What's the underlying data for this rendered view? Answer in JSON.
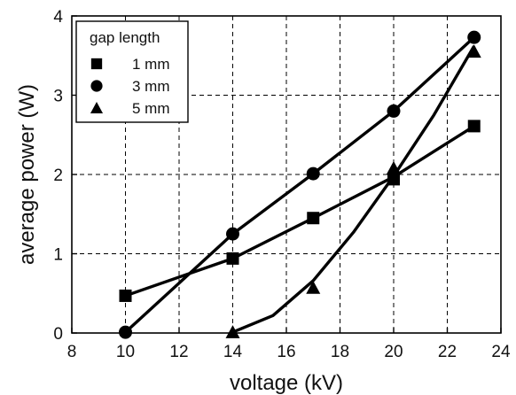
{
  "chart_data": {
    "type": "scatter",
    "xlabel": "voltage (kV)",
    "ylabel": "average power (W)",
    "xlim": [
      8,
      24
    ],
    "ylim": [
      0,
      4
    ],
    "xticks": [
      8,
      10,
      12,
      14,
      16,
      18,
      20,
      22,
      24
    ],
    "yticks": [
      0,
      1,
      2,
      3,
      4
    ],
    "grid": "dashed",
    "legend": {
      "title": "gap length",
      "placement": "top-left"
    },
    "series": [
      {
        "name": "1 mm",
        "marker": "square",
        "x": [
          10,
          14,
          17,
          20,
          23
        ],
        "y": [
          0.47,
          0.94,
          1.45,
          1.94,
          2.61
        ]
      },
      {
        "name": "3 mm",
        "marker": "circle",
        "x": [
          10,
          14,
          17,
          20,
          23
        ],
        "y": [
          0.01,
          1.25,
          2.01,
          2.8,
          3.73
        ]
      },
      {
        "name": "5 mm",
        "marker": "triangle",
        "x": [
          14,
          17,
          20,
          23
        ],
        "y": [
          0.01,
          0.57,
          2.08,
          3.55
        ]
      }
    ],
    "colors": {
      "marks": "#000000",
      "grid": "#000000",
      "background": "#ffffff"
    }
  }
}
